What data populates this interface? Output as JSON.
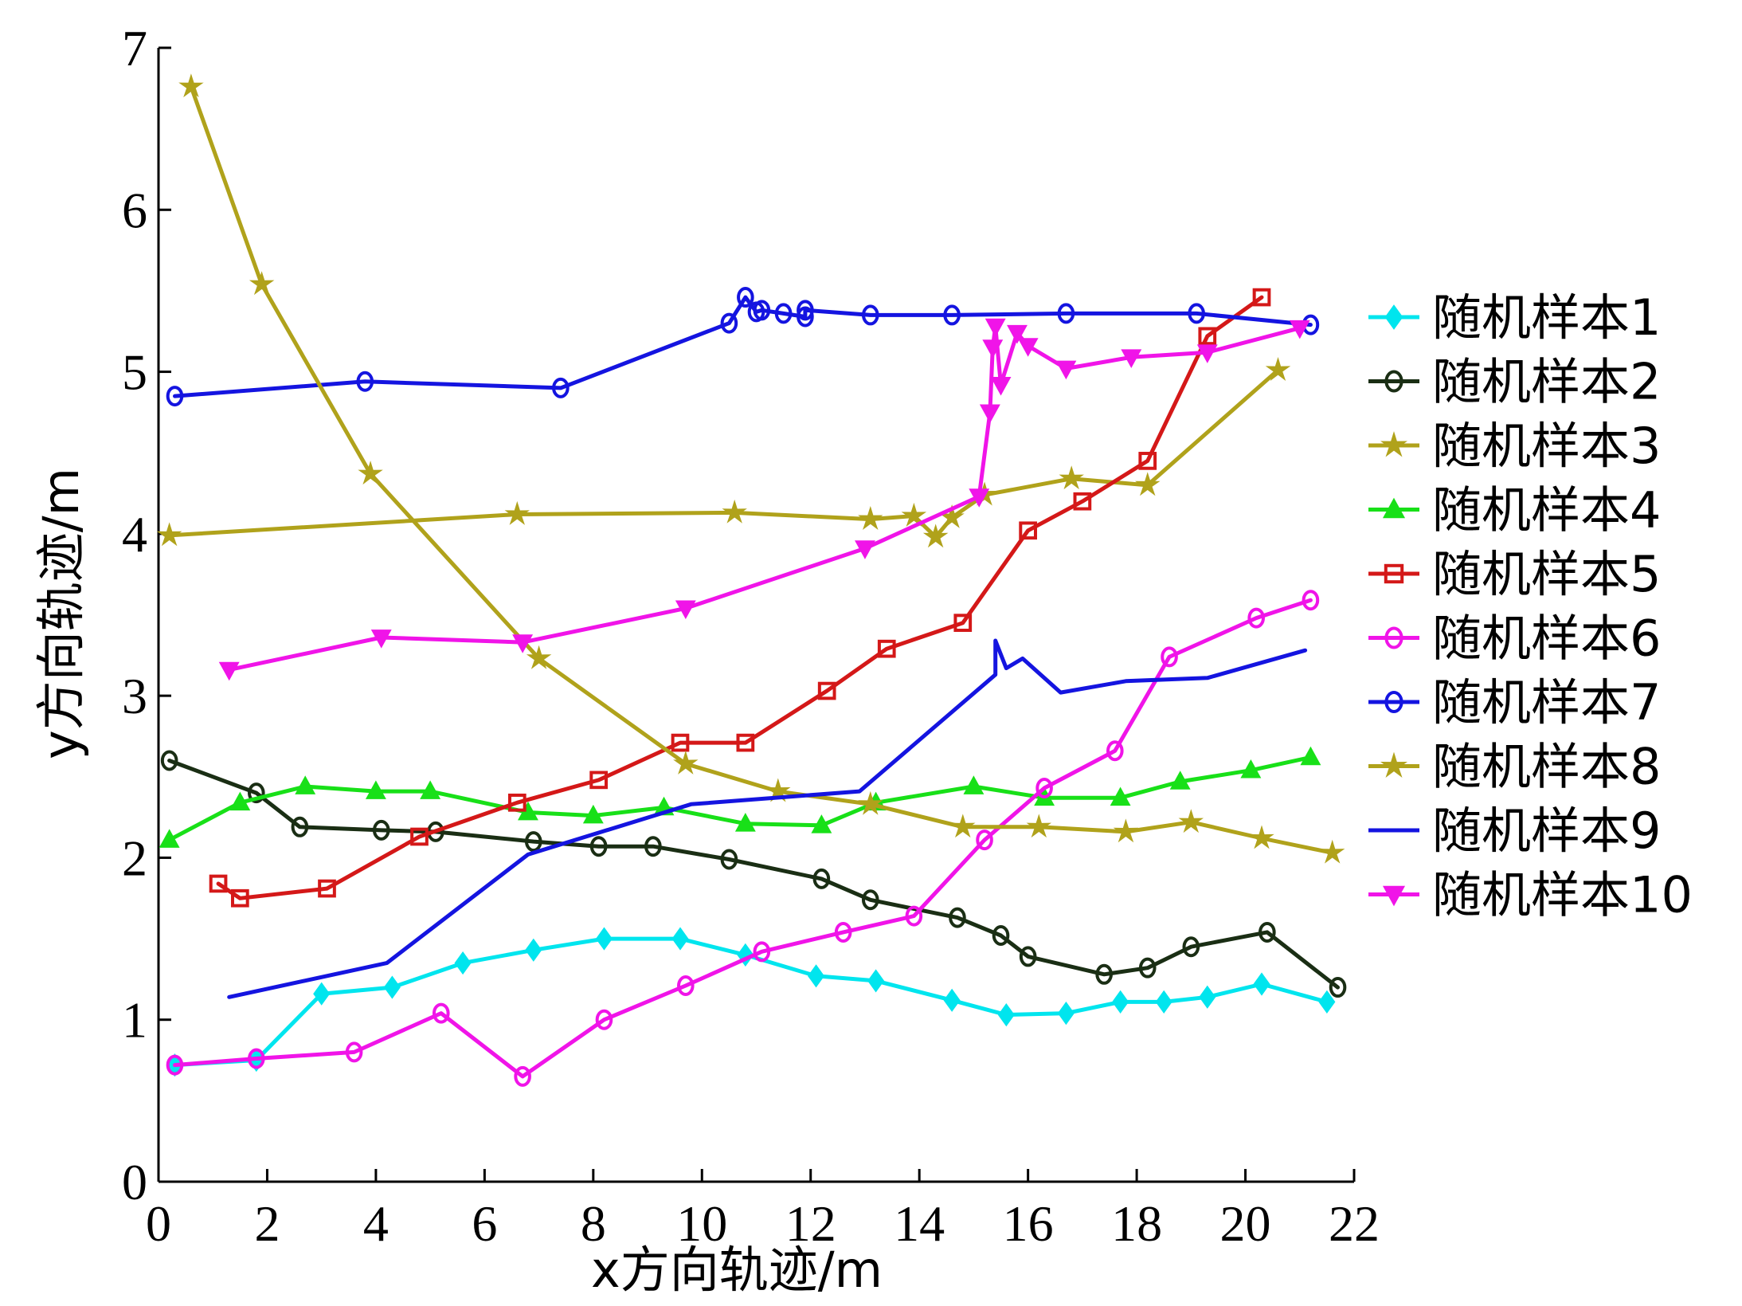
{
  "chart_data": {
    "type": "line",
    "xlabel": "x方向轨迹/m",
    "ylabel": "y方向轨迹/m",
    "xlim": [
      0,
      22
    ],
    "ylim": [
      0,
      7
    ],
    "xticks": [
      "0",
      "2",
      "4",
      "6",
      "8",
      "10",
      "12",
      "14",
      "16",
      "18",
      "20",
      "22"
    ],
    "yticks": [
      "0",
      "1",
      "2",
      "3",
      "4",
      "5",
      "6",
      "7"
    ],
    "grid": false,
    "legend_position": "right",
    "series": [
      {
        "name": "随机样本1",
        "color": "#00e5ee",
        "marker": "diamond",
        "x": [
          0.3,
          1.8,
          3.0,
          4.3,
          5.6,
          6.9,
          8.2,
          9.6,
          10.8,
          12.1,
          13.2,
          14.6,
          15.6,
          16.7,
          17.7,
          18.5,
          19.3,
          20.3,
          21.5
        ],
        "y": [
          0.72,
          0.75,
          1.16,
          1.2,
          1.35,
          1.43,
          1.5,
          1.5,
          1.4,
          1.27,
          1.24,
          1.12,
          1.03,
          1.04,
          1.11,
          1.11,
          1.14,
          1.22,
          1.11
        ]
      },
      {
        "name": "随机样本2",
        "color": "#1a2e14",
        "marker": "circle",
        "x": [
          0.2,
          1.8,
          2.6,
          4.1,
          5.1,
          6.9,
          8.1,
          9.1,
          10.5,
          12.2,
          13.1,
          14.7,
          15.5,
          16.0,
          17.4,
          18.2,
          19.0,
          20.4,
          21.7
        ],
        "y": [
          2.6,
          2.4,
          2.19,
          2.17,
          2.16,
          2.1,
          2.07,
          2.07,
          1.99,
          1.87,
          1.74,
          1.63,
          1.52,
          1.39,
          1.28,
          1.32,
          1.45,
          1.54,
          1.2
        ]
      },
      {
        "name": "随机样本3",
        "color": "#b0a21b",
        "marker": "star",
        "x": [
          0.2,
          6.6,
          10.6,
          13.1,
          13.9,
          14.3,
          14.6,
          15.2,
          16.8,
          18.2,
          20.6
        ],
        "y": [
          3.99,
          4.12,
          4.13,
          4.09,
          4.11,
          3.98,
          4.1,
          4.24,
          4.34,
          4.3,
          5.01
        ]
      },
      {
        "name": "随机样本4",
        "color": "#18e018",
        "marker": "triangle-up",
        "x": [
          0.2,
          1.5,
          2.7,
          4.0,
          5.0,
          6.8,
          8.0,
          9.3,
          10.8,
          12.2,
          13.2,
          15.0,
          16.3,
          17.7,
          18.8,
          20.1,
          21.2
        ],
        "y": [
          2.11,
          2.34,
          2.44,
          2.41,
          2.41,
          2.28,
          2.26,
          2.31,
          2.21,
          2.2,
          2.34,
          2.44,
          2.37,
          2.37,
          2.47,
          2.54,
          2.62
        ]
      },
      {
        "name": "随机样本5",
        "color": "#d41818",
        "marker": "square",
        "x": [
          1.1,
          1.5,
          3.1,
          4.8,
          6.6,
          8.1,
          9.6,
          10.8,
          12.3,
          13.4,
          14.8,
          16.0,
          17.0,
          18.2,
          19.3,
          20.3
        ],
        "y": [
          1.84,
          1.75,
          1.81,
          2.13,
          2.34,
          2.48,
          2.71,
          2.71,
          3.03,
          3.29,
          3.45,
          4.02,
          4.2,
          4.45,
          5.22,
          5.46
        ]
      },
      {
        "name": "随机样本6",
        "color": "#f014e8",
        "marker": "circle",
        "x": [
          0.3,
          1.8,
          3.6,
          5.2,
          6.7,
          8.2,
          9.7,
          11.1,
          12.6,
          13.9,
          15.2,
          16.3,
          17.6,
          18.6,
          20.2,
          21.2
        ],
        "y": [
          0.72,
          0.76,
          0.8,
          1.04,
          0.65,
          1.0,
          1.21,
          1.42,
          1.54,
          1.64,
          2.11,
          2.43,
          2.66,
          3.24,
          3.48,
          3.59
        ]
      },
      {
        "name": "随机样本7",
        "color": "#1414e0",
        "marker": "circle",
        "x": [
          0.3,
          3.8,
          7.4,
          10.5,
          10.8,
          11.0,
          11.1,
          11.5,
          11.9,
          11.9,
          13.1,
          14.6,
          16.7,
          19.1,
          21.2
        ],
        "y": [
          4.85,
          4.94,
          4.9,
          5.3,
          5.46,
          5.37,
          5.38,
          5.36,
          5.34,
          5.38,
          5.35,
          5.35,
          5.36,
          5.36,
          5.29
        ]
      },
      {
        "name": "随机样本8",
        "color": "#b0a21b",
        "marker": "star",
        "x": [
          0.6,
          1.9,
          3.9,
          7.0,
          9.7,
          11.4,
          13.1,
          14.8,
          16.2,
          17.8,
          19.0,
          20.3,
          21.6
        ],
        "y": [
          6.76,
          5.54,
          4.37,
          3.23,
          2.58,
          2.41,
          2.33,
          2.19,
          2.19,
          2.16,
          2.22,
          2.12,
          2.03
        ]
      },
      {
        "name": "随机样本9",
        "color": "#1414e0",
        "marker": "none",
        "x": [
          1.3,
          4.2,
          6.8,
          9.8,
          12.9,
          15.4,
          15.4,
          15.6,
          15.9,
          16.6,
          17.8,
          19.3,
          21.1
        ],
        "y": [
          1.14,
          1.35,
          2.02,
          2.33,
          2.41,
          3.13,
          3.34,
          3.17,
          3.23,
          3.02,
          3.09,
          3.11,
          3.28
        ]
      },
      {
        "name": "随机样本10",
        "color": "#f014e8",
        "marker": "triangle-down",
        "x": [
          1.3,
          4.1,
          6.7,
          9.7,
          13.0,
          15.1,
          15.3,
          15.35,
          15.4,
          15.5,
          15.8,
          16.0,
          16.7,
          17.9,
          19.3,
          21.0
        ],
        "y": [
          3.16,
          3.36,
          3.33,
          3.54,
          3.91,
          4.23,
          4.75,
          5.15,
          5.28,
          4.92,
          5.24,
          5.16,
          5.02,
          5.09,
          5.12,
          5.27
        ]
      }
    ]
  }
}
